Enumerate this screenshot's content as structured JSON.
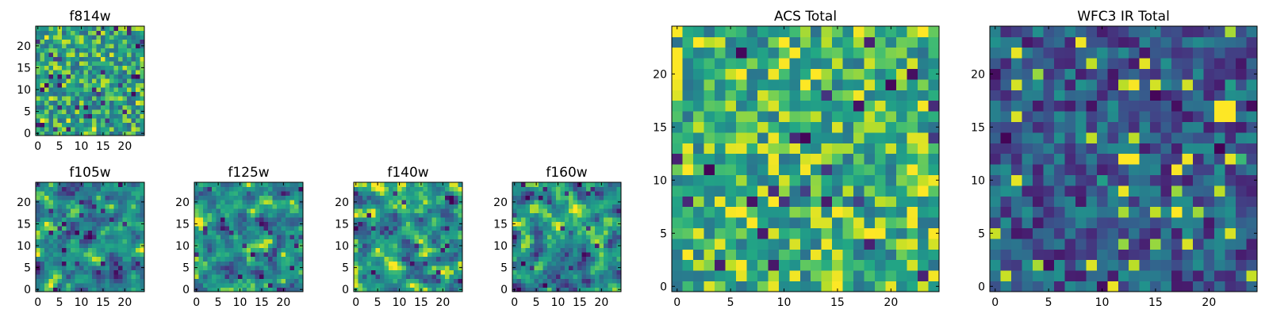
{
  "figure": {
    "description_free": true
  },
  "chart_data": [
    {
      "type": "heatmap",
      "title": "f814w",
      "x_ticks": [
        "0",
        "5",
        "10",
        "15",
        "20"
      ],
      "y_ticks": [
        "0",
        "5",
        "10",
        "15",
        "20"
      ],
      "xlim": [
        -0.5,
        24.5
      ],
      "ylim": [
        -0.5,
        24.5
      ],
      "grid_size": [
        25,
        25
      ],
      "colormap": "viridis",
      "seed": 814,
      "value_range": [
        0.0,
        1.0
      ],
      "value_bias": 0.68,
      "smoothing": 0
    },
    {
      "type": "heatmap",
      "title": "f105w",
      "x_ticks": [
        "0",
        "5",
        "10",
        "15",
        "20"
      ],
      "y_ticks": [
        "0",
        "5",
        "10",
        "15",
        "20"
      ],
      "xlim": [
        -0.5,
        24.5
      ],
      "ylim": [
        -0.5,
        24.5
      ],
      "grid_size": [
        25,
        25
      ],
      "colormap": "viridis",
      "seed": 105,
      "value_range": [
        0.0,
        1.0
      ],
      "value_bias": 0.62,
      "smoothing": 1
    },
    {
      "type": "heatmap",
      "title": "f125w",
      "x_ticks": [
        "0",
        "5",
        "10",
        "15",
        "20"
      ],
      "y_ticks": [
        "0",
        "5",
        "10",
        "15",
        "20"
      ],
      "xlim": [
        -0.5,
        24.5
      ],
      "ylim": [
        -0.5,
        24.5
      ],
      "grid_size": [
        25,
        25
      ],
      "colormap": "viridis",
      "seed": 125,
      "value_range": [
        0.0,
        1.0
      ],
      "value_bias": 0.64,
      "smoothing": 1
    },
    {
      "type": "heatmap",
      "title": "f140w",
      "x_ticks": [
        "0",
        "5",
        "10",
        "15",
        "20"
      ],
      "y_ticks": [
        "0",
        "5",
        "10",
        "15",
        "20"
      ],
      "xlim": [
        -0.5,
        24.5
      ],
      "ylim": [
        -0.5,
        24.5
      ],
      "grid_size": [
        25,
        25
      ],
      "colormap": "viridis",
      "seed": 140,
      "value_range": [
        0.0,
        1.0
      ],
      "value_bias": 0.7,
      "smoothing": 1
    },
    {
      "type": "heatmap",
      "title": "f160w",
      "x_ticks": [
        "0",
        "5",
        "10",
        "15",
        "20"
      ],
      "y_ticks": [
        "0",
        "5",
        "10",
        "15",
        "20"
      ],
      "xlim": [
        -0.5,
        24.5
      ],
      "ylim": [
        -0.5,
        24.5
      ],
      "grid_size": [
        25,
        25
      ],
      "colormap": "viridis",
      "seed": 160,
      "value_range": [
        0.0,
        1.0
      ],
      "value_bias": 0.66,
      "smoothing": 1
    },
    {
      "type": "heatmap",
      "title": "ACS Total",
      "x_ticks": [
        "0",
        "5",
        "10",
        "15",
        "20"
      ],
      "y_ticks": [
        "0",
        "5",
        "10",
        "15",
        "20"
      ],
      "xlim": [
        -0.5,
        24.5
      ],
      "ylim": [
        -0.5,
        24.5
      ],
      "grid_size": [
        25,
        25
      ],
      "colormap": "viridis",
      "seed": 2025,
      "value_range": [
        0.0,
        1.0
      ],
      "value_bias": 0.74,
      "smoothing": 0
    },
    {
      "type": "heatmap",
      "title": "WFC3 IR Total",
      "x_ticks": [
        "0",
        "5",
        "10",
        "15",
        "20"
      ],
      "y_ticks": [
        "0",
        "5",
        "10",
        "15",
        "20"
      ],
      "xlim": [
        -0.5,
        24.5
      ],
      "ylim": [
        -0.5,
        24.5
      ],
      "grid_size": [
        25,
        25
      ],
      "colormap": "viridis",
      "seed": 3030,
      "value_range": [
        0.0,
        1.0
      ],
      "value_bias": 0.36,
      "smoothing": 0,
      "hotspots": [
        {
          "x": 12,
          "y": 12,
          "w": 2,
          "h": 1,
          "value": 1.0
        },
        {
          "x": 21,
          "y": 16,
          "w": 2,
          "h": 2,
          "value": 1.0
        },
        {
          "x": 17,
          "y": 7,
          "w": 1,
          "h": 1,
          "value": 1.0
        },
        {
          "x": 23,
          "y": 12,
          "w": 1,
          "h": 1,
          "value": 0.8
        },
        {
          "x": 10,
          "y": 10,
          "w": 1,
          "h": 1,
          "value": 0.7
        },
        {
          "x": 22,
          "y": 19,
          "w": 1,
          "h": 1,
          "value": 0.7
        }
      ]
    }
  ]
}
